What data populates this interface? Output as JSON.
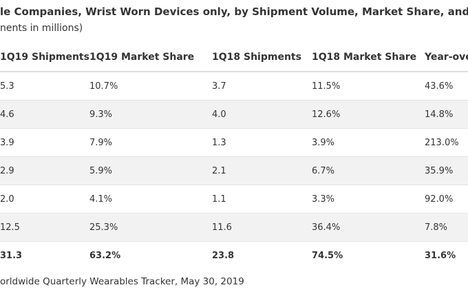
{
  "header": {
    "title": "le Companies, Wrist Worn Devices only, by Shipment Volume, Market Share, and Year-Ove",
    "subtitle": "nents in millions)"
  },
  "table": {
    "columns": [
      "1Q19 Shipments",
      "1Q19 Market Share",
      "1Q18 Shipments",
      "1Q18 Market Share",
      "Year-ove"
    ],
    "rows": [
      [
        "5.3",
        "10.7%",
        "3.7",
        "11.5%",
        "43.6%"
      ],
      [
        "4.6",
        "9.3%",
        "4.0",
        "12.6%",
        "14.8%"
      ],
      [
        "3.9",
        "7.9%",
        "1.3",
        "3.9%",
        "213.0%"
      ],
      [
        "2.9",
        "5.9%",
        "2.1",
        "6.7%",
        "35.9%"
      ],
      [
        "2.0",
        "4.1%",
        "1.1",
        "3.3%",
        "92.0%"
      ],
      [
        "12.5",
        "25.3%",
        "11.6",
        "36.4%",
        "7.8%"
      ],
      [
        "31.3",
        "63.2%",
        "23.8",
        "74.5%",
        "31.6%"
      ]
    ]
  },
  "footer": {
    "source": "orldwide Quarterly Wearables Tracker, May 30, 2019"
  }
}
